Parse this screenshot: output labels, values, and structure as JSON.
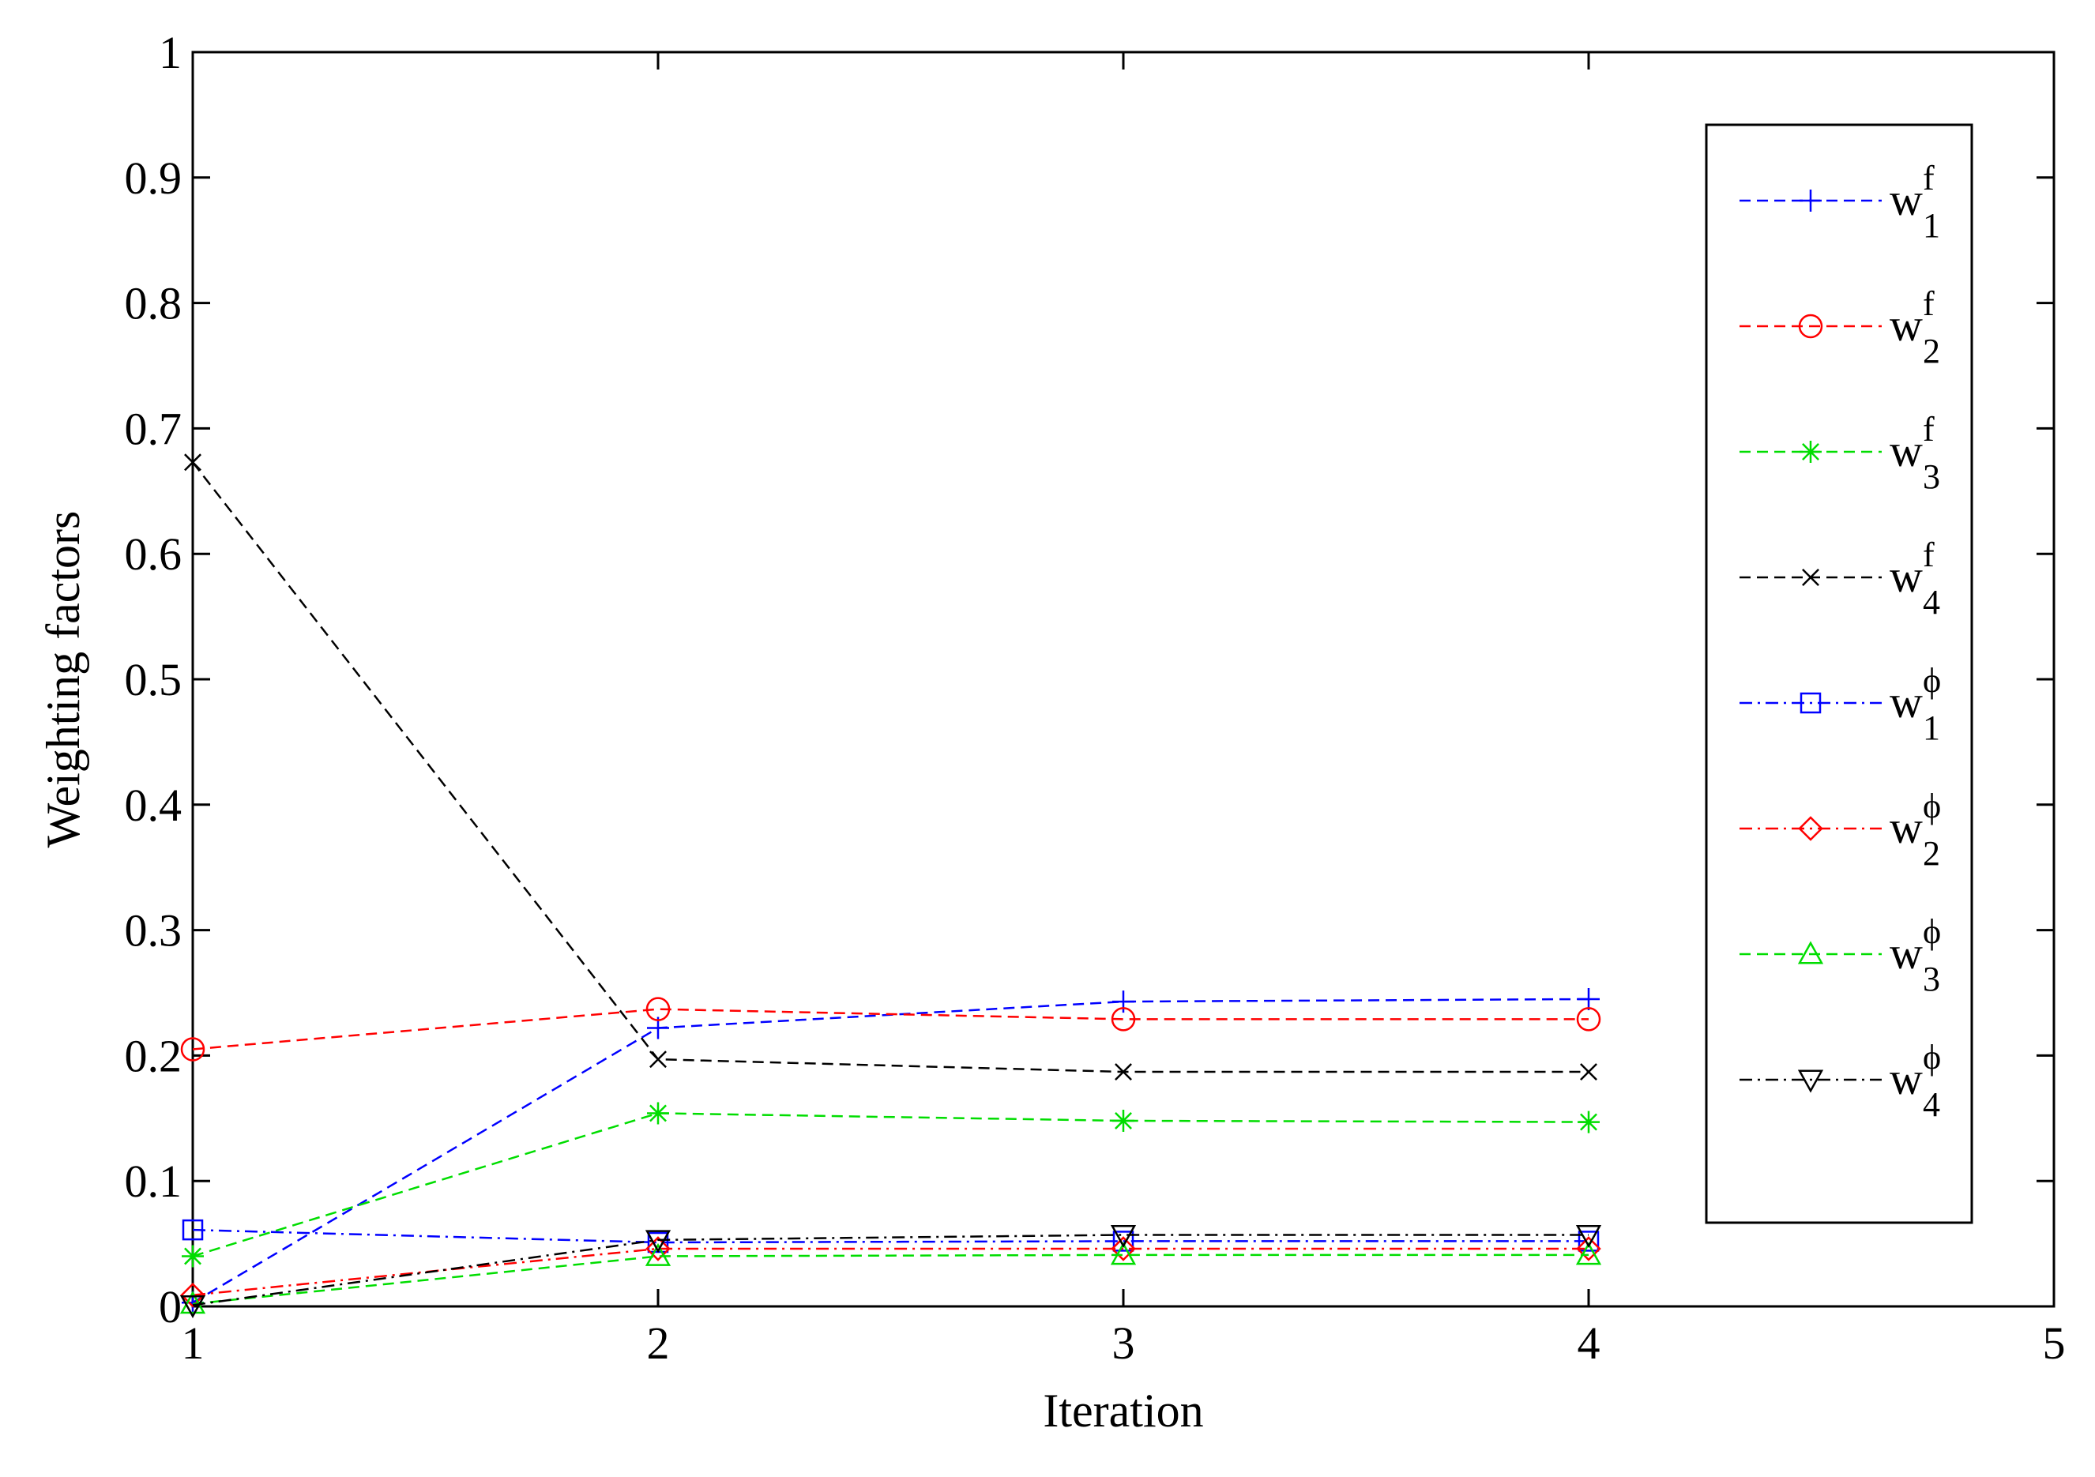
{
  "chart_data": {
    "type": "line",
    "xlabel": "Iteration",
    "ylabel": "Weighting factors",
    "xlim": [
      1,
      5
    ],
    "ylim": [
      0,
      1
    ],
    "xticks": [
      1,
      2,
      3,
      4,
      5
    ],
    "xtick_labels": [
      "1",
      "2",
      "3",
      "4",
      "5"
    ],
    "yticks": [
      0,
      0.1,
      0.2,
      0.3,
      0.4,
      0.5,
      0.6,
      0.7,
      0.8,
      0.9,
      1
    ],
    "ytick_labels": [
      "0",
      "0.1",
      "0.2",
      "0.3",
      "0.4",
      "0.5",
      "0.6",
      "0.7",
      "0.8",
      "0.9",
      "1"
    ],
    "grid": false,
    "legend_position": "right",
    "x": [
      1,
      2,
      3,
      4
    ],
    "series": [
      {
        "base": "w",
        "sub": "1",
        "sup": "f",
        "color": "#0000ff",
        "marker": "plus",
        "dash": "dash",
        "values": [
          0.003,
          0.222,
          0.243,
          0.245
        ]
      },
      {
        "base": "w",
        "sub": "2",
        "sup": "f",
        "color": "#ff0000",
        "marker": "circle",
        "dash": "dash",
        "values": [
          0.205,
          0.237,
          0.229,
          0.229
        ]
      },
      {
        "base": "w",
        "sub": "3",
        "sup": "f",
        "color": "#00dd00",
        "marker": "star",
        "dash": "dash",
        "values": [
          0.04,
          0.154,
          0.148,
          0.147
        ]
      },
      {
        "base": "w",
        "sub": "4",
        "sup": "f",
        "color": "#000000",
        "marker": "x",
        "dash": "dash",
        "values": [
          0.673,
          0.197,
          0.187,
          0.187
        ]
      },
      {
        "base": "w",
        "sub": "1",
        "sup": "ϕ",
        "color": "#0000ff",
        "marker": "square",
        "dash": "dashdot",
        "values": [
          0.061,
          0.051,
          0.052,
          0.052
        ]
      },
      {
        "base": "w",
        "sub": "2",
        "sup": "ϕ",
        "color": "#ff0000",
        "marker": "diamond",
        "dash": "dashdot",
        "values": [
          0.009,
          0.046,
          0.046,
          0.046
        ]
      },
      {
        "base": "w",
        "sub": "3",
        "sup": "ϕ",
        "color": "#00dd00",
        "marker": "triangle-up",
        "dash": "dash",
        "values": [
          0.002,
          0.04,
          0.041,
          0.041
        ]
      },
      {
        "base": "w",
        "sub": "4",
        "sup": "ϕ",
        "color": "#000000",
        "marker": "triangle-down",
        "dash": "dashdot",
        "values": [
          0.001,
          0.053,
          0.057,
          0.057
        ]
      }
    ]
  }
}
